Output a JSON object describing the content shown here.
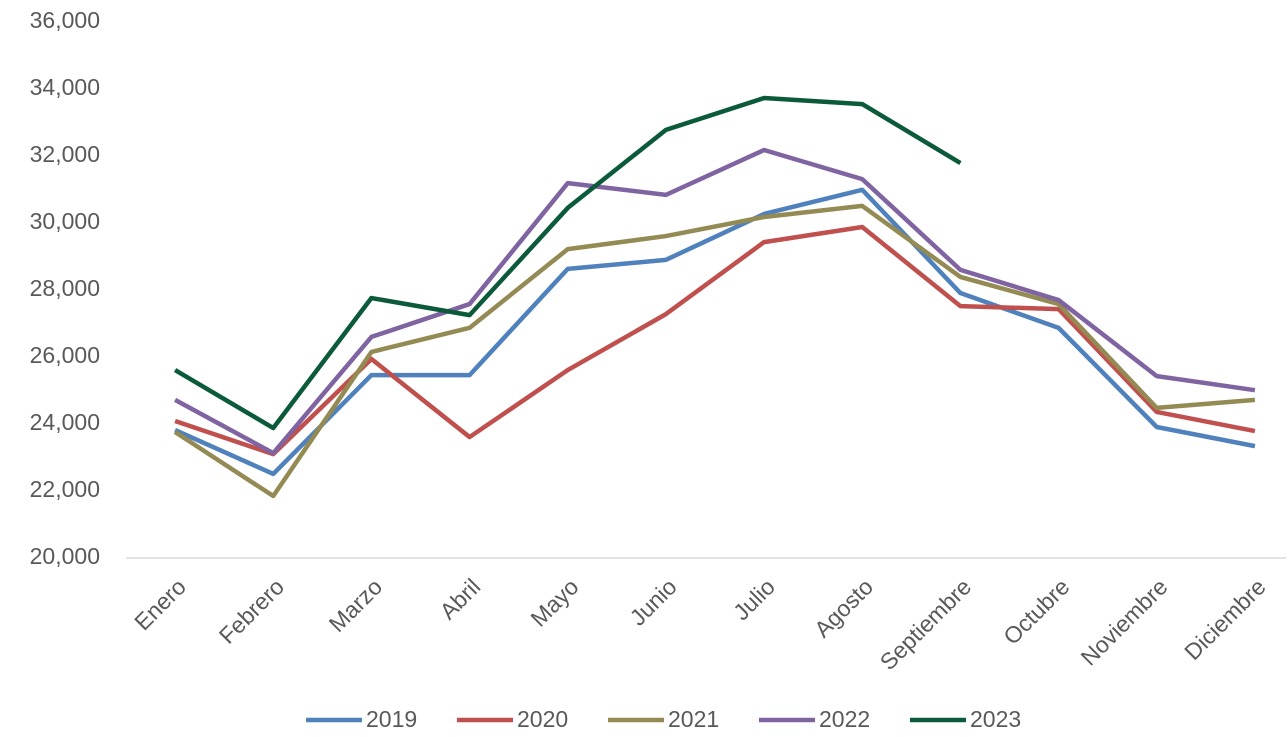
{
  "chart_data": {
    "type": "line",
    "categories": [
      "Enero",
      "Febrero",
      "Marzo",
      "Abril",
      "Mayo",
      "Junio",
      "Julio",
      "Agosto",
      "Septiembre",
      "Octubre",
      "Noviembre",
      "Diciembre"
    ],
    "series": [
      {
        "name": "2019",
        "color": "#4f81bd",
        "values": [
          23820,
          22510,
          25460,
          25460,
          28630,
          28900,
          30270,
          30990,
          27910,
          26870,
          23910,
          23340
        ]
      },
      {
        "name": "2020",
        "color": "#c0504d",
        "values": [
          24090,
          23100,
          25940,
          23610,
          25610,
          27280,
          29430,
          29880,
          27520,
          27430,
          24360,
          23790
        ]
      },
      {
        "name": "2021",
        "color": "#948a54",
        "values": [
          23760,
          21850,
          26150,
          26870,
          29220,
          29610,
          30180,
          30510,
          28390,
          27580,
          24480,
          24720
        ]
      },
      {
        "name": "2022",
        "color": "#8064a2",
        "values": [
          24720,
          23130,
          26600,
          27580,
          31190,
          30840,
          32180,
          31310,
          28600,
          27700,
          25430,
          25010
        ]
      },
      {
        "name": "2023",
        "color": "#0b5a3a",
        "values": [
          25610,
          23880,
          27760,
          27250,
          30450,
          32780,
          33730,
          33550,
          31790,
          null,
          null,
          null
        ]
      }
    ],
    "ylim": [
      20000,
      36000
    ],
    "yticks": [
      {
        "value": 20000,
        "label": "20,000"
      },
      {
        "value": 22000,
        "label": "22,000"
      },
      {
        "value": 24000,
        "label": "24,000"
      },
      {
        "value": 26000,
        "label": "26,000"
      },
      {
        "value": 28000,
        "label": "28,000"
      },
      {
        "value": 30000,
        "label": "30,000"
      },
      {
        "value": 32000,
        "label": "32,000"
      },
      {
        "value": 34000,
        "label": "34,000"
      },
      {
        "value": 36000,
        "label": "36,000"
      }
    ],
    "legend": "bottom"
  }
}
